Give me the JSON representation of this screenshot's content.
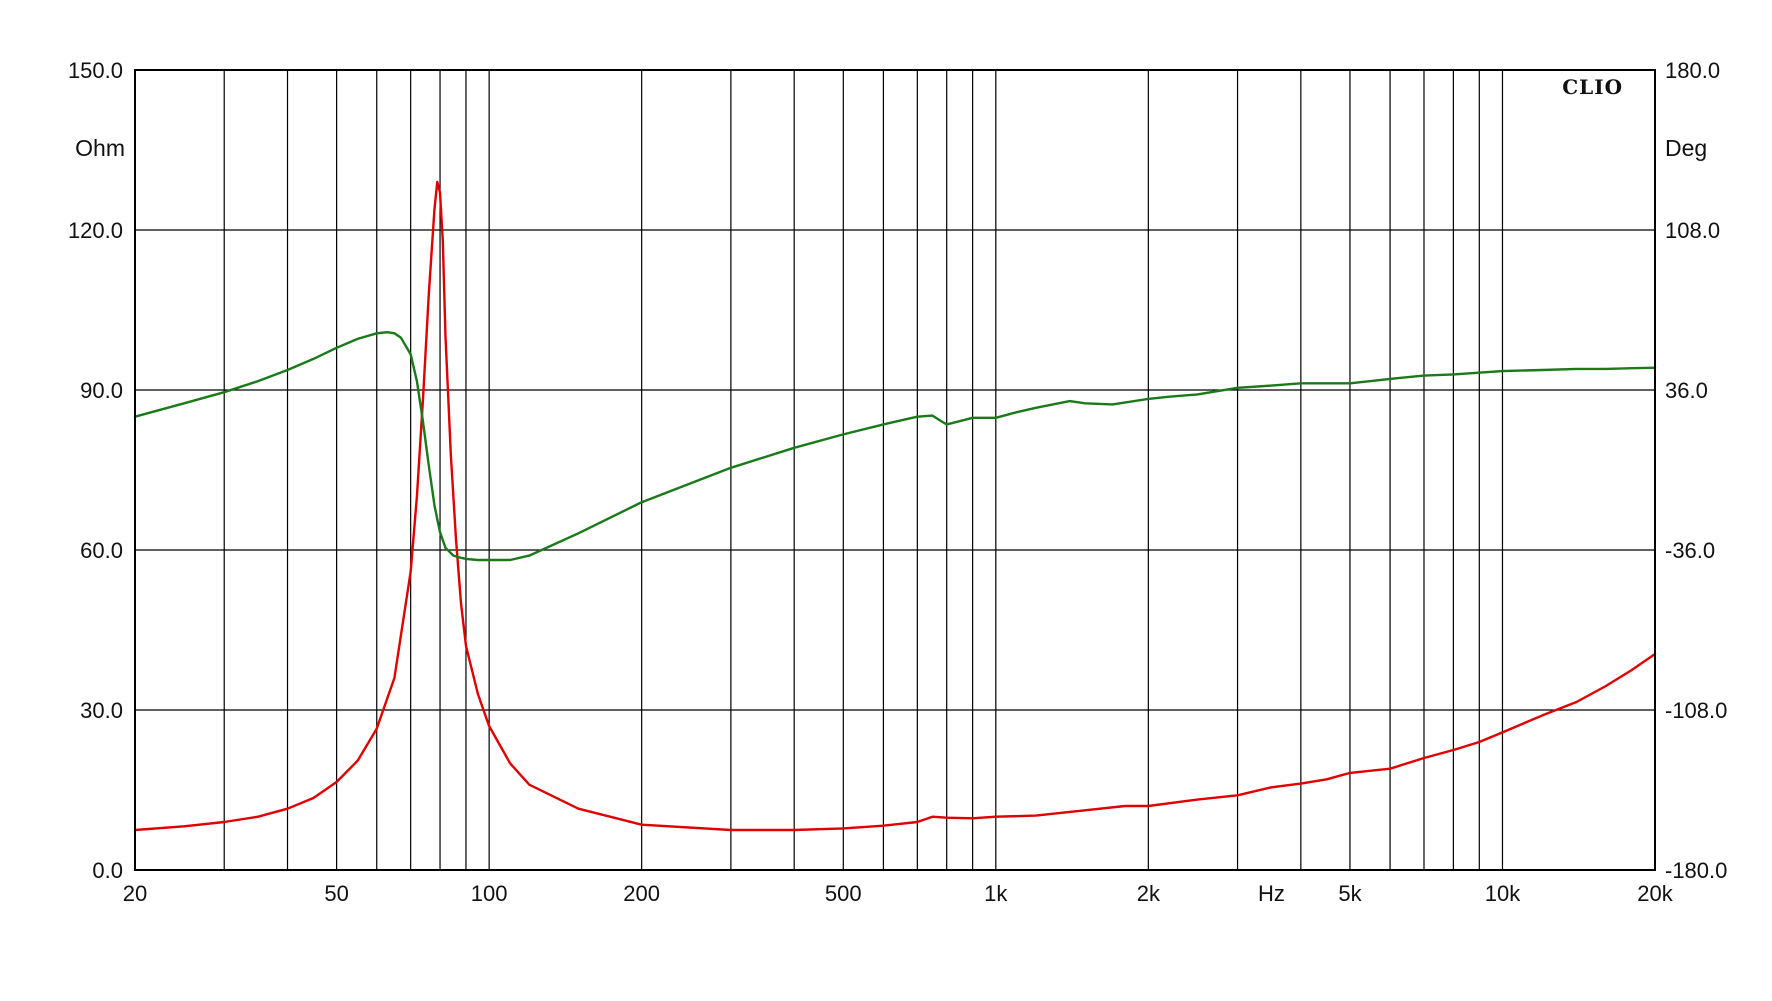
{
  "chart_data": {
    "type": "line",
    "brand": "CLIO",
    "x_scale": "log",
    "xlim": [
      20,
      20000
    ],
    "x_unit": "Hz",
    "x_tick_labels": [
      {
        "value": 20,
        "label": "20"
      },
      {
        "value": 50,
        "label": "50"
      },
      {
        "value": 100,
        "label": "100"
      },
      {
        "value": 200,
        "label": "200"
      },
      {
        "value": 500,
        "label": "500"
      },
      {
        "value": 1000,
        "label": "1k"
      },
      {
        "value": 2000,
        "label": "2k"
      },
      {
        "value": 5000,
        "label": "5k"
      },
      {
        "value": 10000,
        "label": "10k"
      },
      {
        "value": 20000,
        "label": "20k"
      }
    ],
    "y_left": {
      "unit": "Ohm",
      "ylim": [
        0,
        150
      ],
      "ticks": [
        "0.0",
        "30.0",
        "60.0",
        "90.0",
        "120.0",
        "150.0"
      ]
    },
    "y_right": {
      "unit": "Deg",
      "ylim": [
        -180,
        180
      ],
      "ticks": [
        "-180.0",
        "-108.0",
        "-36.0",
        "36.0",
        "108.0",
        "180.0"
      ]
    },
    "grid": true,
    "colors": {
      "impedance": "#e00000",
      "phase": "#1a7a1a",
      "grid": "#000000"
    },
    "series": [
      {
        "axis": "left",
        "color": "#e00000",
        "x": [
          20,
          25,
          30,
          35,
          40,
          45,
          50,
          55,
          60,
          65,
          70,
          72,
          74,
          76,
          78,
          79,
          80,
          81,
          82,
          84,
          86,
          88,
          90,
          95,
          100,
          110,
          120,
          150,
          200,
          300,
          400,
          500,
          600,
          700,
          750,
          800,
          900,
          1000,
          1200,
          1500,
          1800,
          2000,
          2500,
          3000,
          3500,
          4000,
          4500,
          5000,
          6000,
          7000,
          8000,
          9000,
          10000,
          12000,
          14000,
          16000,
          18000,
          20000
        ],
        "y": [
          7.5,
          8.2,
          9.0,
          10.0,
          11.5,
          13.5,
          16.5,
          20.5,
          26.5,
          36,
          56,
          70,
          88,
          108,
          124,
          129,
          127,
          118,
          100,
          78,
          62,
          50,
          42,
          33,
          27,
          20,
          16,
          11.5,
          8.5,
          7.5,
          7.5,
          7.8,
          8.3,
          9.0,
          10.0,
          9.8,
          9.7,
          10.0,
          10.2,
          11.2,
          12.0,
          12.0,
          13.2,
          14.0,
          15.5,
          16.2,
          17.0,
          18.2,
          19.0,
          21.0,
          22.5,
          24.0,
          25.8,
          29.0,
          31.5,
          34.5,
          37.5,
          40.5
        ]
      },
      {
        "axis": "right",
        "color": "#1a7a1a",
        "x": [
          20,
          25,
          30,
          35,
          40,
          45,
          50,
          55,
          60,
          63,
          65,
          67,
          70,
          72,
          74,
          76,
          78,
          80,
          82,
          85,
          88,
          90,
          95,
          100,
          110,
          120,
          150,
          200,
          300,
          400,
          500,
          600,
          700,
          750,
          780,
          800,
          850,
          900,
          1000,
          1100,
          1200,
          1400,
          1500,
          1700,
          2000,
          2200,
          2500,
          3000,
          3500,
          4000,
          4500,
          5000,
          5500,
          6000,
          7000,
          8000,
          10000,
          12000,
          14000,
          16000,
          18000,
          20000
        ],
        "y": [
          24,
          30,
          35,
          40,
          45,
          50,
          55,
          59,
          61.5,
          62,
          61.5,
          59.5,
          52,
          40,
          22,
          2,
          -16,
          -28,
          -35,
          -38.5,
          -39.5,
          -40,
          -40.5,
          -40.5,
          -40.5,
          -38.5,
          -28.5,
          -14.5,
          1,
          10,
          16,
          20.5,
          24,
          24.5,
          22,
          20.5,
          22,
          23.5,
          23.5,
          26,
          28,
          31,
          30,
          29.5,
          32,
          33,
          34,
          37,
          38,
          39,
          39,
          39,
          40,
          41,
          42.5,
          43,
          44.5,
          45,
          45.5,
          45.5,
          45.8,
          46
        ]
      }
    ]
  }
}
